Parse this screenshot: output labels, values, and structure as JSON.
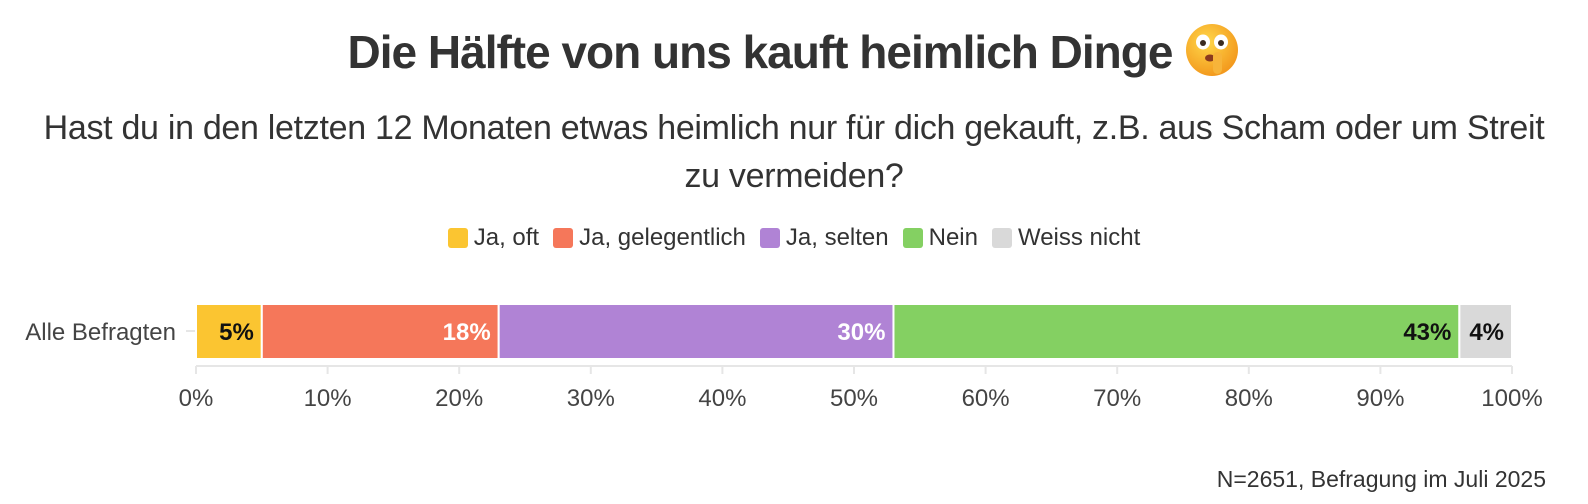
{
  "title": "Die Hälfte von uns kauft heimlich Dinge",
  "title_emoji": "shushing-face",
  "subtitle": "Hast du in den letzten 12 Monaten etwas heimlich nur für dich gekauft, z.B. aus Scham oder um Streit zu vermeiden?",
  "caption": "N=2651, Befragung im Juli 2025",
  "chart_data": {
    "type": "bar",
    "orientation": "horizontal",
    "stacked": true,
    "categories": [
      "Alle Befragten"
    ],
    "series": [
      {
        "name": "Ja, oft",
        "values": [
          5
        ],
        "label": "5%",
        "color": "#FBC531",
        "label_color": "#111111"
      },
      {
        "name": "Ja, gelegentlich",
        "values": [
          18
        ],
        "label": "18%",
        "color": "#F5775A",
        "label_color": "#ffffff"
      },
      {
        "name": "Ja, selten",
        "values": [
          30
        ],
        "label": "30%",
        "color": "#B083D5",
        "label_color": "#ffffff"
      },
      {
        "name": "Nein",
        "values": [
          43
        ],
        "label": "43%",
        "color": "#84D062",
        "label_color": "#111111"
      },
      {
        "name": "Weiss nicht",
        "values": [
          4
        ],
        "label": "4%",
        "color": "#D9D9D9",
        "label_color": "#111111"
      }
    ],
    "xlim": [
      0,
      100
    ],
    "x_ticks": [
      "0%",
      "10%",
      "20%",
      "30%",
      "40%",
      "50%",
      "60%",
      "70%",
      "80%",
      "90%",
      "100%"
    ],
    "legend_position": "top",
    "grid": false
  }
}
